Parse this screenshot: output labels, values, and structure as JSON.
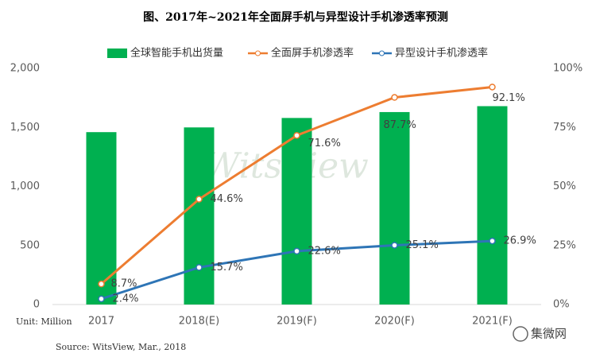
{
  "chart_data": {
    "type": "bar-line",
    "title": "图、2017年~2021年全面屏手机与异型设计手机渗透率预测",
    "categories": [
      "2017",
      "2018(E)",
      "2019(F)",
      "2020(F)",
      "2021(F)"
    ],
    "series": [
      {
        "name": "全球智能手机出货量",
        "type": "bar",
        "color": "#00b050",
        "axis": "y",
        "values": [
          1460,
          1500,
          1580,
          1630,
          1680
        ]
      },
      {
        "name": "全面屏手机渗透率",
        "type": "line",
        "color": "#ed7d31",
        "axis": "y2",
        "values": [
          8.7,
          44.6,
          71.6,
          87.7,
          92.1
        ],
        "value_labels": [
          "8.7%",
          "44.6%",
          "71.6%",
          "87.7%",
          "92.1%"
        ]
      },
      {
        "name": "异型设计手机渗透率",
        "type": "line",
        "color": "#2e75b6",
        "axis": "y2",
        "values": [
          2.4,
          15.7,
          22.6,
          25.1,
          26.9
        ],
        "value_labels": [
          "2.4%",
          "15.7%",
          "22.6%",
          "25.1%",
          "26.9%"
        ]
      }
    ],
    "ylim": [
      0,
      2000
    ],
    "yticks": [
      0,
      500,
      {
        "value": 1000,
        "label": "1,000"
      },
      {
        "value": 1500,
        "label": "1,500"
      },
      {
        "value": 2000,
        "label": "2,000"
      }
    ],
    "y2lim": [
      0,
      100
    ],
    "y2ticks": [
      {
        "value": 0,
        "label": "0%"
      },
      {
        "value": 25,
        "label": "25%"
      },
      {
        "value": 50,
        "label": "50%"
      },
      {
        "value": 75,
        "label": "75%"
      },
      {
        "value": 100,
        "label": "100%"
      }
    ],
    "unit_label": "Unit: Million",
    "source": "Source: WitsView, Mar., 2018",
    "watermark": "WitsView",
    "logo": "集微网",
    "legend": "top"
  }
}
